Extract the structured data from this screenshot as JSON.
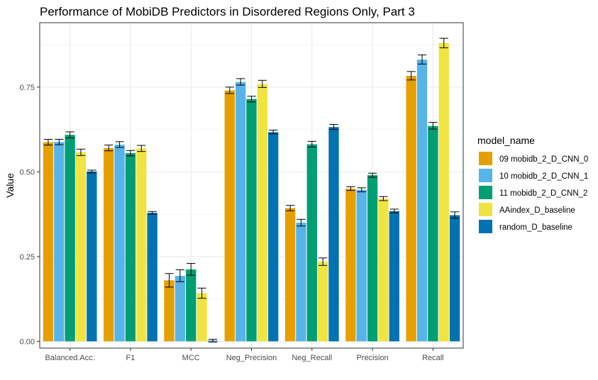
{
  "chart_data": {
    "type": "bar",
    "title": "Performance of MobiDB Predictors in Disordered Regions Only, Part 3",
    "xlabel": "",
    "ylabel": "Value",
    "ylim": [
      -0.02,
      0.94
    ],
    "yticks": [
      0.0,
      0.25,
      0.5,
      0.75
    ],
    "ytick_labels": [
      "0.00",
      "0.25",
      "0.50",
      "0.75"
    ],
    "grid": true,
    "legend_title": "model_name",
    "legend_position": "right",
    "categories": [
      "Balanced.Acc.",
      "F1",
      "MCC",
      "Neg_Precision",
      "Neg_Recall",
      "Precision",
      "Recall"
    ],
    "series": [
      {
        "name": "09 mobidb_2_D_CNN_0",
        "color": "#E69F00",
        "values": [
          0.587,
          0.57,
          0.18,
          0.74,
          0.393,
          0.45,
          0.783
        ],
        "err_low": [
          0.579,
          0.562,
          0.16,
          0.731,
          0.385,
          0.445,
          0.771
        ],
        "err_high": [
          0.596,
          0.579,
          0.2,
          0.75,
          0.401,
          0.456,
          0.796
        ]
      },
      {
        "name": "10 mobidb_2_D_CNN_1",
        "color": "#56B4E9",
        "values": [
          0.588,
          0.58,
          0.193,
          0.765,
          0.35,
          0.447,
          0.831
        ],
        "err_low": [
          0.58,
          0.572,
          0.176,
          0.756,
          0.34,
          0.441,
          0.818
        ],
        "err_high": [
          0.596,
          0.589,
          0.211,
          0.775,
          0.36,
          0.453,
          0.845
        ]
      },
      {
        "name": "11 mobidb_2_D_CNN_2",
        "color": "#009E73",
        "values": [
          0.609,
          0.555,
          0.212,
          0.715,
          0.581,
          0.49,
          0.635
        ],
        "err_low": [
          0.6,
          0.547,
          0.195,
          0.706,
          0.573,
          0.484,
          0.626
        ],
        "err_high": [
          0.618,
          0.563,
          0.23,
          0.723,
          0.59,
          0.496,
          0.646
        ]
      },
      {
        "name": "AAindex_D_baseline",
        "color": "#F0E442",
        "values": [
          0.558,
          0.569,
          0.142,
          0.759,
          0.235,
          0.421,
          0.88
        ],
        "err_low": [
          0.548,
          0.56,
          0.127,
          0.749,
          0.224,
          0.415,
          0.866
        ],
        "err_high": [
          0.567,
          0.578,
          0.157,
          0.77,
          0.246,
          0.427,
          0.894
        ]
      },
      {
        "name": "random_D_baseline",
        "color": "#0072B2",
        "values": [
          0.501,
          0.379,
          0.002,
          0.617,
          0.632,
          0.384,
          0.372
        ],
        "err_low": [
          0.497,
          0.375,
          -0.002,
          0.612,
          0.625,
          0.379,
          0.363
        ],
        "err_high": [
          0.505,
          0.383,
          0.006,
          0.623,
          0.64,
          0.39,
          0.382
        ]
      }
    ]
  }
}
